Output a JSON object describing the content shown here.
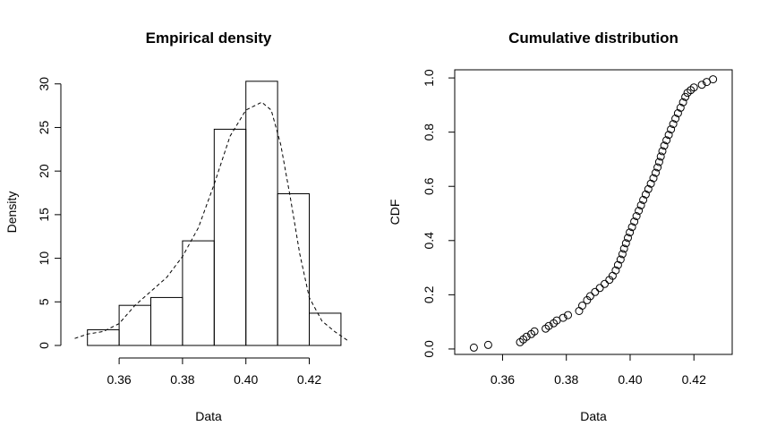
{
  "chart_data": [
    {
      "type": "bar",
      "title": "Empirical density",
      "xlabel": "Data",
      "ylabel": "Density",
      "xlim": [
        0.345,
        0.432
      ],
      "ylim": [
        0,
        31
      ],
      "xticks": [
        "0.36",
        "0.38",
        "0.40",
        "0.42"
      ],
      "yticks": [
        "0",
        "5",
        "10",
        "15",
        "20",
        "25",
        "30"
      ],
      "bins": [
        {
          "from": 0.35,
          "to": 0.36,
          "value": 1.8
        },
        {
          "from": 0.36,
          "to": 0.37,
          "value": 4.6
        },
        {
          "from": 0.37,
          "to": 0.38,
          "value": 5.5
        },
        {
          "from": 0.38,
          "to": 0.39,
          "value": 12.0
        },
        {
          "from": 0.39,
          "to": 0.4,
          "value": 24.8
        },
        {
          "from": 0.4,
          "to": 0.41,
          "value": 30.3
        },
        {
          "from": 0.41,
          "to": 0.42,
          "value": 17.4
        },
        {
          "from": 0.42,
          "to": 0.43,
          "value": 3.7
        }
      ],
      "density_curve": {
        "style": "dashed",
        "x": [
          0.346,
          0.35,
          0.355,
          0.36,
          0.365,
          0.37,
          0.375,
          0.38,
          0.385,
          0.39,
          0.395,
          0.4,
          0.405,
          0.408,
          0.411,
          0.414,
          0.417,
          0.42,
          0.424,
          0.428,
          0.432
        ],
        "y": [
          0.8,
          1.3,
          1.6,
          2.5,
          4.6,
          6.2,
          7.8,
          10.2,
          13.5,
          18.5,
          24.0,
          27.0,
          27.9,
          27.0,
          23.0,
          17.0,
          10.5,
          5.5,
          2.8,
          1.6,
          0.6
        ]
      }
    },
    {
      "type": "scatter",
      "title": "Cumulative distribution",
      "xlabel": "Data",
      "ylabel": "CDF",
      "xlim": [
        0.345,
        0.432
      ],
      "ylim": [
        -0.02,
        1.03
      ],
      "xticks": [
        "0.36",
        "0.38",
        "0.40",
        "0.42"
      ],
      "yticks": [
        "0.0",
        "0.2",
        "0.4",
        "0.6",
        "0.8",
        "1.0"
      ],
      "marker": "open-circle",
      "points": [
        [
          0.351,
          0.005
        ],
        [
          0.3555,
          0.015
        ],
        [
          0.3655,
          0.025
        ],
        [
          0.3665,
          0.035
        ],
        [
          0.3675,
          0.045
        ],
        [
          0.369,
          0.055
        ],
        [
          0.37,
          0.065
        ],
        [
          0.3735,
          0.075
        ],
        [
          0.3745,
          0.085
        ],
        [
          0.376,
          0.095
        ],
        [
          0.377,
          0.105
        ],
        [
          0.379,
          0.115
        ],
        [
          0.3805,
          0.125
        ],
        [
          0.384,
          0.14
        ],
        [
          0.385,
          0.16
        ],
        [
          0.3865,
          0.18
        ],
        [
          0.3875,
          0.195
        ],
        [
          0.389,
          0.21
        ],
        [
          0.3905,
          0.225
        ],
        [
          0.392,
          0.24
        ],
        [
          0.3935,
          0.255
        ],
        [
          0.3945,
          0.27
        ],
        [
          0.3955,
          0.29
        ],
        [
          0.3962,
          0.31
        ],
        [
          0.397,
          0.33
        ],
        [
          0.3976,
          0.35
        ],
        [
          0.3981,
          0.37
        ],
        [
          0.3987,
          0.39
        ],
        [
          0.3993,
          0.41
        ],
        [
          0.3999,
          0.43
        ],
        [
          0.4006,
          0.45
        ],
        [
          0.4013,
          0.47
        ],
        [
          0.402,
          0.49
        ],
        [
          0.4027,
          0.51
        ],
        [
          0.4034,
          0.53
        ],
        [
          0.4041,
          0.55
        ],
        [
          0.4049,
          0.57
        ],
        [
          0.4057,
          0.59
        ],
        [
          0.4065,
          0.61
        ],
        [
          0.4073,
          0.63
        ],
        [
          0.408,
          0.65
        ],
        [
          0.4086,
          0.67
        ],
        [
          0.4091,
          0.69
        ],
        [
          0.4096,
          0.71
        ],
        [
          0.4101,
          0.73
        ],
        [
          0.4107,
          0.75
        ],
        [
          0.4114,
          0.77
        ],
        [
          0.4121,
          0.79
        ],
        [
          0.4128,
          0.81
        ],
        [
          0.4135,
          0.83
        ],
        [
          0.4142,
          0.85
        ],
        [
          0.415,
          0.87
        ],
        [
          0.4158,
          0.89
        ],
        [
          0.4166,
          0.91
        ],
        [
          0.4173,
          0.93
        ],
        [
          0.418,
          0.945
        ],
        [
          0.419,
          0.955
        ],
        [
          0.42,
          0.965
        ],
        [
          0.4225,
          0.975
        ],
        [
          0.424,
          0.985
        ],
        [
          0.426,
          0.995
        ]
      ]
    }
  ]
}
